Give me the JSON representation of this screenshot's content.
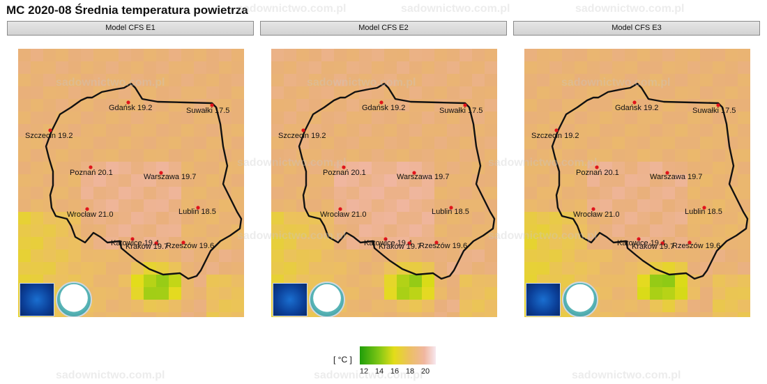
{
  "page_title": "MC 2020-08 Średnia temperatura powietrza",
  "panels": [
    {
      "header": "Model CFS E1"
    },
    {
      "header": "Model CFS E2"
    },
    {
      "header": "Model CFS E3"
    }
  ],
  "cities": [
    {
      "name": "Gdańsk",
      "value": "19.2"
    },
    {
      "name": "Suwałki",
      "value": "17.5"
    },
    {
      "name": "Szczecin",
      "value": "19.2"
    },
    {
      "name": "Poznań",
      "value": "20.1"
    },
    {
      "name": "Warszawa",
      "value": "19.7"
    },
    {
      "name": "Lublin",
      "value": "18.5"
    },
    {
      "name": "Wrocław",
      "value": "21.0"
    },
    {
      "name": "Katowice",
      "value": "19.4"
    },
    {
      "name": "Kraków",
      "value": "19.7"
    },
    {
      "name": "Rzeszów",
      "value": "19.6"
    }
  ],
  "legend": {
    "unit": "[ °C ]",
    "ticks": [
      "12",
      "14",
      "16",
      "18",
      "20"
    ],
    "colors": [
      "#1f9e0a",
      "#7fc615",
      "#e3dd18",
      "#ecc060",
      "#f0b6a0",
      "#f7e8ef"
    ]
  },
  "watermark_text": "sadownictwo.com.pl",
  "logos": [
    "noaa-logo",
    "imgw-logo"
  ]
}
